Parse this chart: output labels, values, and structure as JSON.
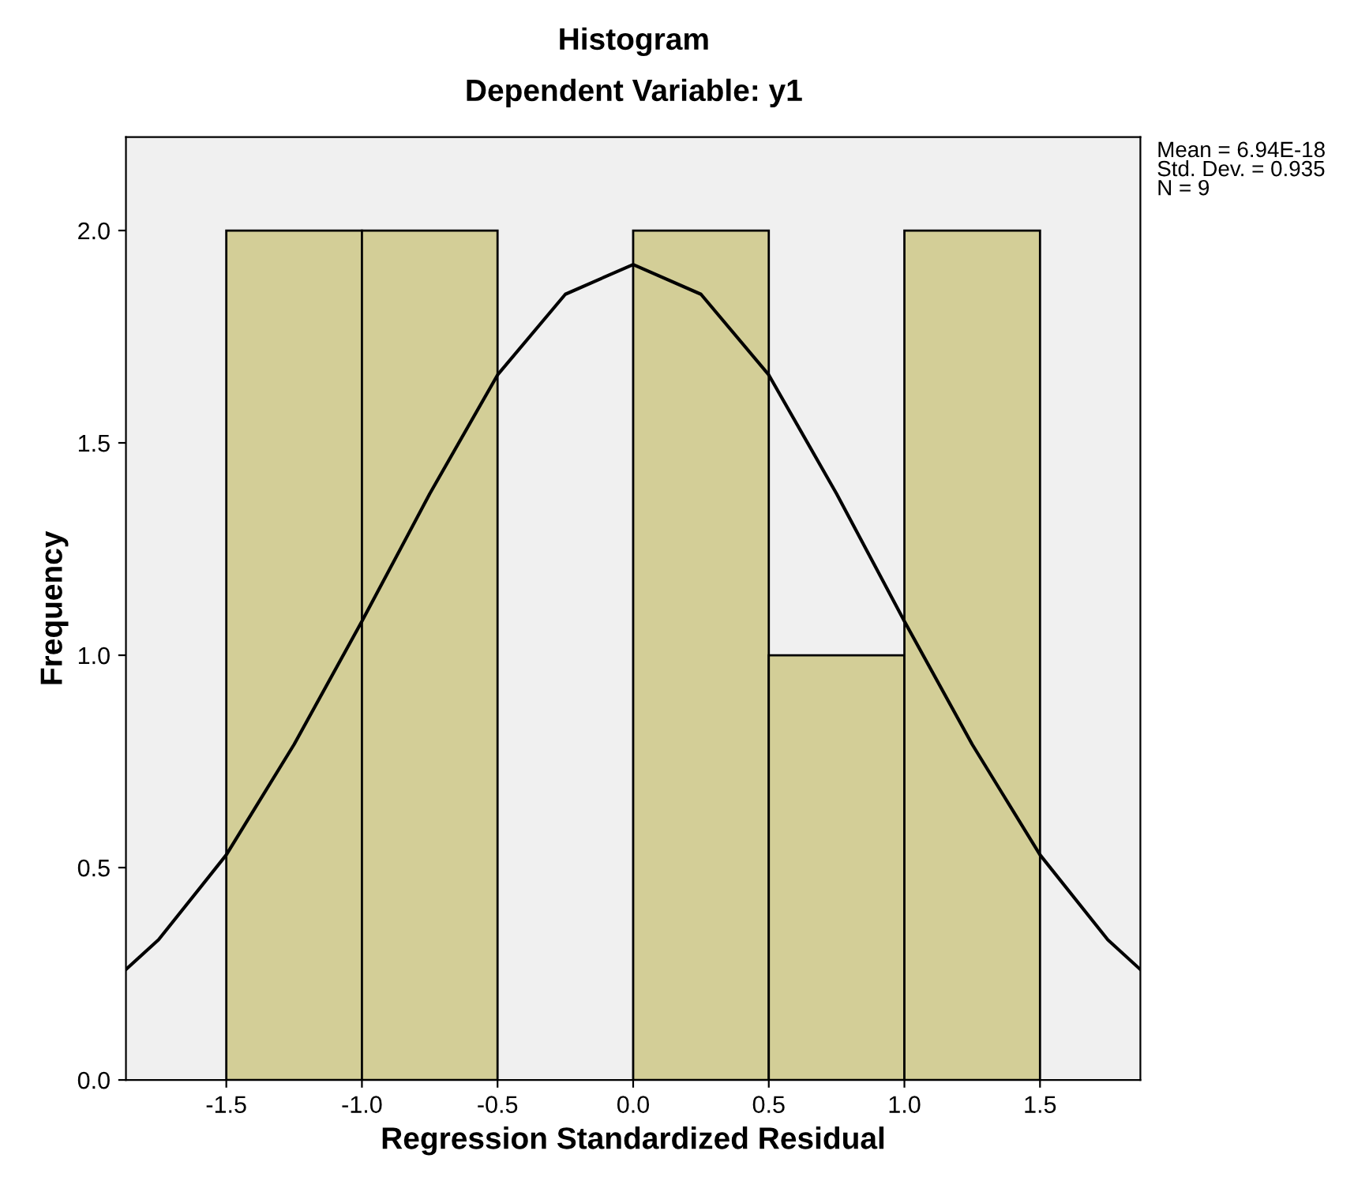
{
  "chart_data": {
    "type": "histogram",
    "title": "Histogram",
    "subtitle": "Dependent Variable: y1",
    "xlabel": "Regression Standardized Residual",
    "ylabel": "Frequency",
    "bins": [
      -1.5,
      -1.0,
      -0.5,
      0.0,
      0.5,
      1.0,
      1.5
    ],
    "values": [
      2,
      2,
      0,
      2,
      1,
      2
    ],
    "color": "#d3ce97",
    "series": [
      {
        "type": "line",
        "color": "#000000",
        "x": [
          -1.87,
          -1.75,
          -1.5,
          -1.25,
          -1.0,
          -0.75,
          -0.5,
          -0.25,
          0.0,
          0.25,
          0.5,
          0.75,
          1.0,
          1.25,
          1.5,
          1.75,
          1.87
        ],
        "values": [
          0.26,
          0.33,
          0.53,
          0.79,
          1.08,
          1.38,
          1.66,
          1.85,
          1.92,
          1.85,
          1.66,
          1.38,
          1.08,
          0.79,
          0.53,
          0.33,
          0.26
        ]
      }
    ],
    "xlim": [
      -1.87,
      1.87
    ],
    "ylim": [
      0,
      2.22
    ],
    "xticks": [
      {
        "value": -1.5,
        "label": "-1.5"
      },
      {
        "value": -1.0,
        "label": "-1.0"
      },
      {
        "value": -0.5,
        "label": "-0.5"
      },
      {
        "value": 0.0,
        "label": "0.0"
      },
      {
        "value": 0.5,
        "label": "0.5"
      },
      {
        "value": 1.0,
        "label": "1.0"
      },
      {
        "value": 1.5,
        "label": "1.5"
      }
    ],
    "yticks": [
      {
        "value": 0.0,
        "label": "0.0"
      },
      {
        "value": 0.5,
        "label": "0.5"
      },
      {
        "value": 1.0,
        "label": "1.0"
      },
      {
        "value": 1.5,
        "label": "1.5"
      },
      {
        "value": 2.0,
        "label": "2.0"
      }
    ],
    "annotations": [
      "Mean = 6.94E-18",
      "Std. Dev. = 0.935",
      "N = 9"
    ],
    "grid": false,
    "legend": false
  }
}
